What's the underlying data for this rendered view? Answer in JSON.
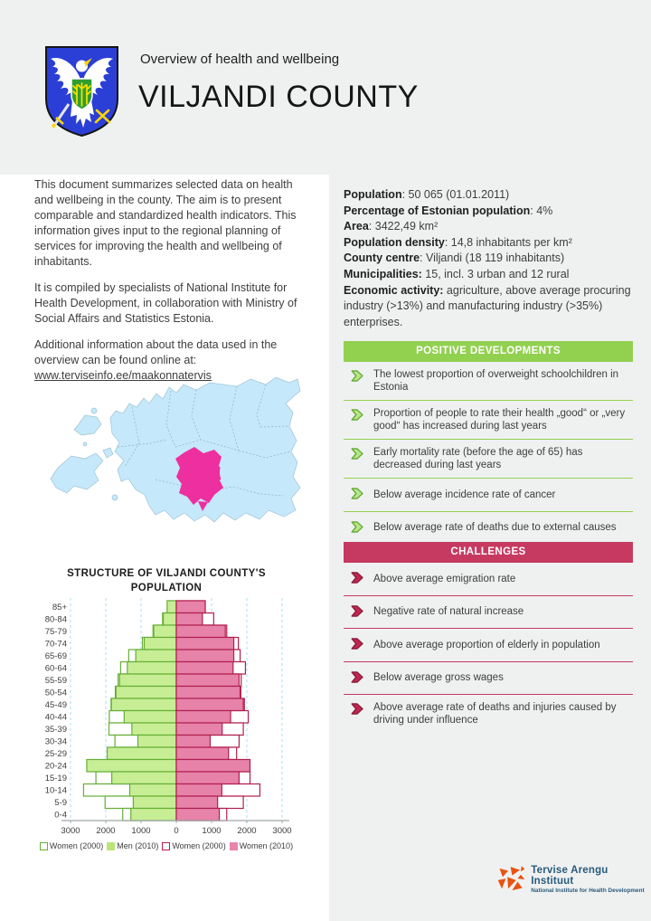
{
  "header": {
    "eyebrow": "Overview of health and wellbeing",
    "title": "VILJANDI COUNTY",
    "coat_of_arms": "viljandi-county-coat-of-arms"
  },
  "intro": {
    "paragraphs": [
      "This document summarizes selected data on health and wellbeing in the county. The aim is to present comparable and standardized health indicators. This information gives input to the regional planning of services for improving the health and wellbeing of inhabitants.",
      "It is compiled by specialists of National Institute for Health Development, in collaboration with Ministry of Social Affairs and Statistics Estonia."
    ],
    "additional_prefix": "Additional information about the data used in the overview can be found online at: ",
    "link": "www.terviseinfo.ee/maakonnatervis"
  },
  "facts": {
    "items": [
      {
        "label": "Population",
        "value": "50 065 (01.01.2011)"
      },
      {
        "label": "Percentage of Estonian population",
        "value": "4%"
      },
      {
        "label": "Area",
        "value": "3422,49 km²"
      },
      {
        "label": "Population density",
        "value": "14,8 inhabitants per km²"
      },
      {
        "label": "County centre",
        "value": "Viljandi (18 119 inhabitants)"
      },
      {
        "label": "Municipalities:",
        "value": "15, incl. 3 urban and 12 rural"
      },
      {
        "label": "Economic activity:",
        "value": "agriculture, above average procuring industry (>13%) and manufacturing industry (>35%) enterprises."
      }
    ]
  },
  "positives": {
    "title": "POSITIVE DEVELOPMENTS",
    "accent_color": "#92d050",
    "bullet_icon": "chevron-arrow-icon",
    "items": [
      "The lowest proportion of overweight schoolchildren in Estonia",
      "Proportion of people to rate their health „good“ or „very good“ has increased during last years",
      "Early mortality rate (before the age of 65) has decreased during last years",
      "Below average incidence rate of cancer",
      "Below average rate of deaths due to external causes"
    ]
  },
  "challenges": {
    "title": "CHALLENGES",
    "accent_color": "#c63a61",
    "bullet_icon": "chevron-arrow-icon",
    "items": [
      "Above average emigration rate",
      "Negative rate of natural increase",
      "Above average proportion of elderly in population",
      "Below average gross wages",
      "Above average rate of deaths and injuries caused by driving under influence"
    ]
  },
  "map": {
    "description": "map-of-estonia-with-viljandi-county-highlighted",
    "land_color": "#c5e8fa",
    "highlight_color": "#ee2f9f"
  },
  "chart_data": {
    "type": "bar",
    "subtype": "population-pyramid",
    "title": "STRUCTURE OF VILJANDI COUNTY'S POPULATION",
    "title_lines": [
      "STRUCTURE OF VILJANDI COUNTY'S",
      "POPULATION"
    ],
    "age_groups": [
      "85+",
      "80-84",
      "75-79",
      "70-74",
      "65-69",
      "60-64",
      "55-59",
      "50-54",
      "45-49",
      "40-44",
      "35-39",
      "30-34",
      "25-29",
      "20-24",
      "15-19",
      "10-14",
      "5-9",
      "0-4"
    ],
    "xlim": [
      -3000,
      3000
    ],
    "xticks": [
      -3000,
      -2000,
      -1000,
      0,
      1000,
      2000,
      3000
    ],
    "xtick_labels": [
      "3000",
      "2000",
      "1000",
      "0",
      "1000",
      "2000",
      "3000"
    ],
    "grid": "vertical-dashed",
    "legend_position": "bottom",
    "series": [
      {
        "legend_label": "Women (2000)",
        "side": "left",
        "style": "outline",
        "values": [
          250,
          390,
          660,
          960,
          1350,
          1580,
          1650,
          1730,
          1850,
          1900,
          1910,
          1740,
          1720,
          1580,
          2280,
          2630,
          2020,
          1520
        ]
      },
      {
        "legend_label": "Men (2010)",
        "side": "left",
        "style": "filled",
        "values": [
          260,
          370,
          640,
          910,
          1150,
          1390,
          1610,
          1710,
          1840,
          1480,
          1260,
          1090,
          1960,
          2540,
          1830,
          1320,
          1220,
          1290
        ]
      },
      {
        "legend_label": "Women (2000)",
        "side": "right",
        "style": "outline",
        "values": [
          820,
          1060,
          1430,
          1760,
          1810,
          1960,
          1840,
          1830,
          1930,
          2040,
          1900,
          1780,
          1710,
          1550,
          2090,
          2370,
          1900,
          1430
        ]
      },
      {
        "legend_label": "Women (2010)",
        "side": "right",
        "style": "filled",
        "values": [
          820,
          740,
          1390,
          1630,
          1630,
          1610,
          1780,
          1810,
          1900,
          1540,
          1300,
          960,
          1480,
          2090,
          1780,
          1290,
          1170,
          1220
        ]
      }
    ],
    "colors": {
      "green_stroke": "#67ae37",
      "green_fill": "#c7ee95",
      "pink_stroke": "#b0204d",
      "pink_fill": "#e782a9",
      "grid": "#abdcf0",
      "axis": "#a0a7a7",
      "text": "#3d3d3d"
    }
  },
  "footer_logo": {
    "title": "Tervise Arengu Instituut",
    "subtitle": "National Institute for Health Development",
    "icon": "tai-shattered-square-icon",
    "orange": "#e9530e",
    "blue": "#2a5b7c"
  }
}
